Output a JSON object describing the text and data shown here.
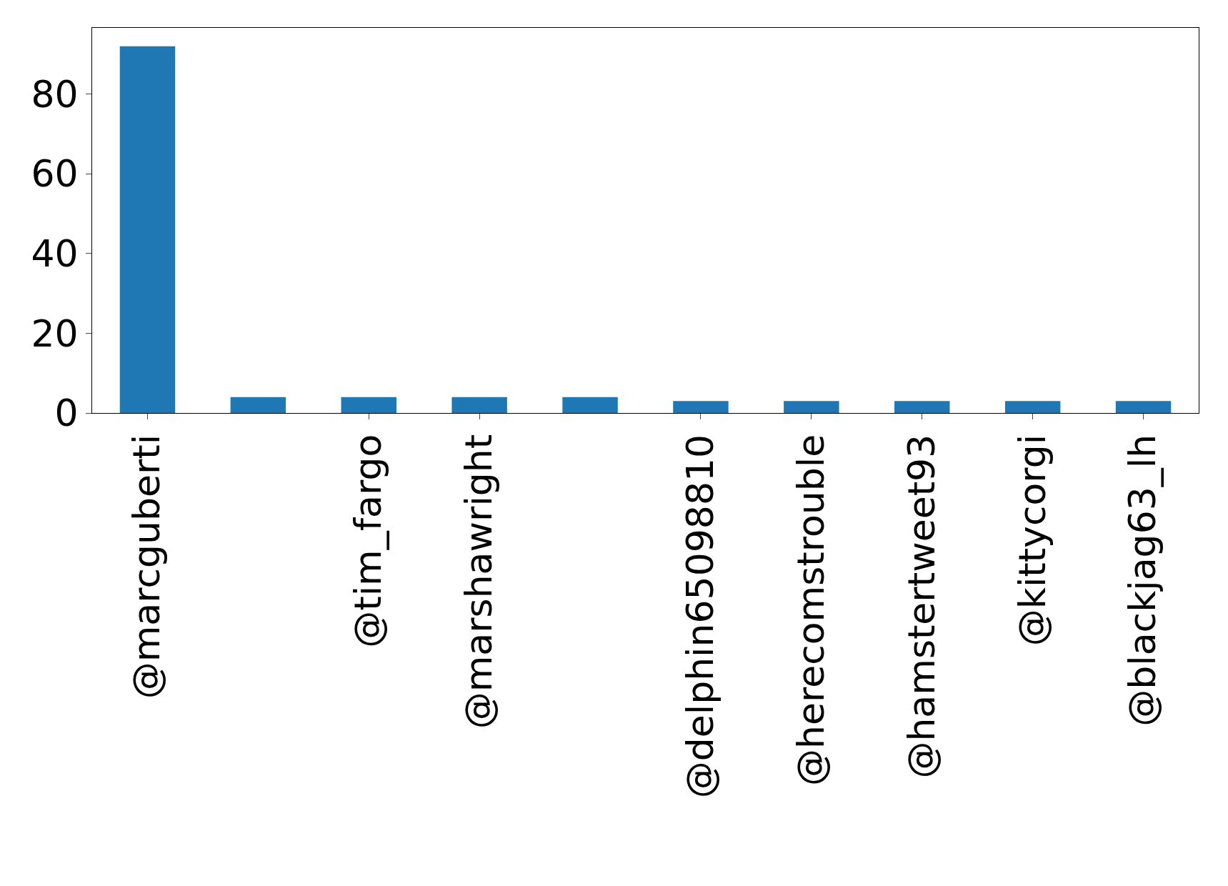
{
  "chart_data": {
    "type": "bar",
    "categories": [
      "@marcguberti",
      null,
      "@tim_fargo",
      "@marshawright",
      null,
      "@delphin65098810",
      "@herecomstrouble",
      "@hamstertweet93",
      "@kittycorgi",
      "@blackjag63_lh"
    ],
    "values": [
      92,
      4,
      4,
      4,
      4,
      3,
      3,
      3,
      3,
      3
    ],
    "color": "#1f77b4",
    "ylim": [
      0,
      96.6
    ],
    "yticks": [
      0,
      20,
      40,
      60,
      80
    ],
    "grid": false
  }
}
